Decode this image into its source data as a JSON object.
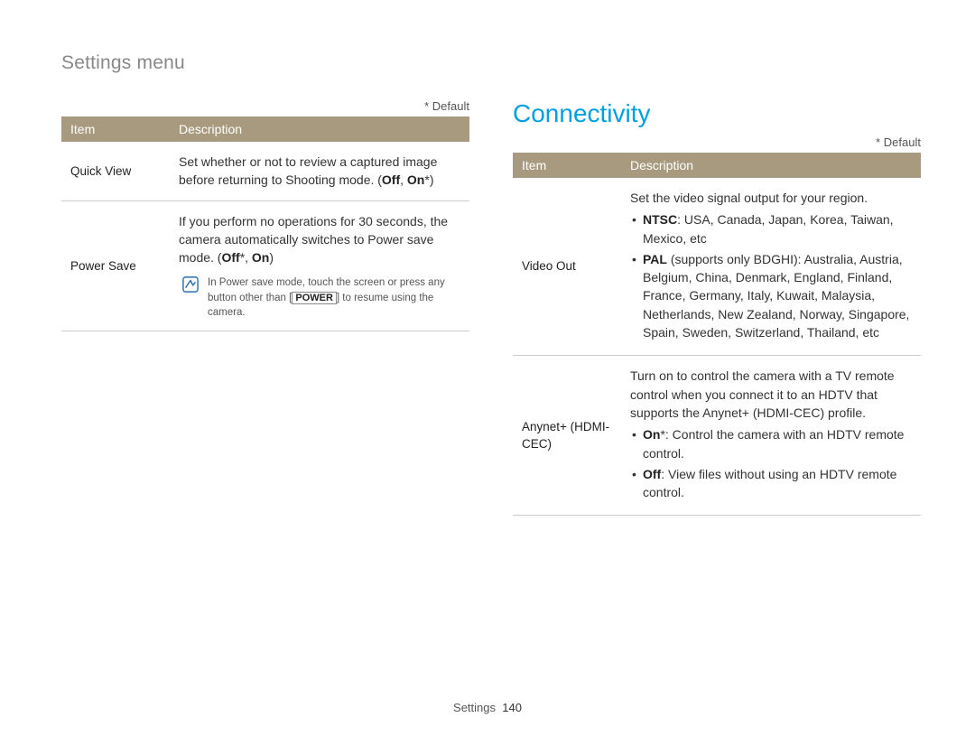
{
  "breadcrumb": "Settings menu",
  "default_marker": "* Default",
  "table_headers": {
    "item": "Item",
    "description": "Description"
  },
  "left": {
    "rows": [
      {
        "item": "Quick View",
        "desc_html": "Set whether or not to review a captured image before returning to Shooting mode. (<b>Off</b>, <b>On</b>*)"
      },
      {
        "item": "Power Save",
        "desc_html": "If you perform no operations for 30 seconds, the camera automatically switches to Power save mode. (<b>Off</b>*, <b>On</b>)",
        "note_html": "In Power save mode, touch the screen or press any button other than [<span class=\"boxed\"><b>POWER</b></span>] to resume using the camera."
      }
    ]
  },
  "right": {
    "title": "Connectivity",
    "rows": [
      {
        "item": "Video Out",
        "desc_html": "Set the video signal output for your region.",
        "bullets_html": [
          "<b>NTSC</b>: USA, Canada, Japan, Korea, Taiwan, Mexico, etc",
          "<b>PAL</b> (supports only BDGHI): Australia, Austria, Belgium, China, Denmark, England, Finland, France, Germany, Italy, Kuwait, Malaysia, Netherlands, New Zealand, Norway, Singapore, Spain, Sweden, Switzerland, Thailand, etc"
        ]
      },
      {
        "item": "Anynet+ (HDMI-CEC)",
        "desc_html": "Turn on to control the camera with a TV remote control when you connect it to an HDTV that supports the Anynet+ (HDMI-CEC) profile.",
        "bullets_html": [
          "<b>On</b>*: Control the camera with an HDTV remote control.",
          "<b>Off</b>: View files without using an HDTV remote control."
        ]
      }
    ]
  },
  "footer": {
    "section": "Settings",
    "page": "140"
  },
  "colors": {
    "header_bg": "#a89a7f",
    "title_color": "#00a0e0",
    "breadcrumb_color": "#888888",
    "note_icon_color": "#2a6db0"
  }
}
